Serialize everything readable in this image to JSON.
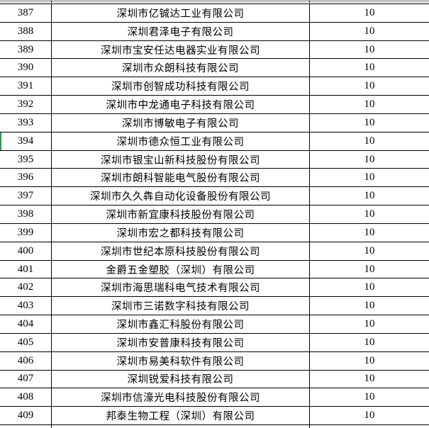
{
  "table": {
    "rows": [
      {
        "num": "387",
        "name": "深圳市亿铖达工业有限公司",
        "value": "10"
      },
      {
        "num": "388",
        "name": "深圳君泽电子有限公司",
        "value": "10"
      },
      {
        "num": "389",
        "name": "深圳市宝安任达电器实业有限公司",
        "value": "10"
      },
      {
        "num": "390",
        "name": "深圳市众朗科技有限公司",
        "value": "10"
      },
      {
        "num": "391",
        "name": "深圳市创智成功科技有限公司",
        "value": "10"
      },
      {
        "num": "392",
        "name": "深圳市中龙通电子科技有限公司",
        "value": "10"
      },
      {
        "num": "393",
        "name": "深圳市博敏电子有限公司",
        "value": "10"
      },
      {
        "num": "394",
        "name": "深圳市德众恒工业有限公司",
        "value": "10"
      },
      {
        "num": "395",
        "name": "深圳市银宝山新科技股份有限公司",
        "value": "10"
      },
      {
        "num": "396",
        "name": "深圳市朗科智能电气股份有限公司",
        "value": "10"
      },
      {
        "num": "397",
        "name": "深圳市久久犇自动化设备股份有限公司",
        "value": "10"
      },
      {
        "num": "398",
        "name": "深圳市新宜康科技股份有限公司",
        "value": "10"
      },
      {
        "num": "399",
        "name": "深圳市宏之都科技有限公司",
        "value": "10"
      },
      {
        "num": "400",
        "name": "深圳市世纪本原科技股份有限公司",
        "value": "10"
      },
      {
        "num": "401",
        "name": "金爵五金塑胶（深圳）有限公司",
        "value": "10"
      },
      {
        "num": "402",
        "name": "深圳市海思瑞科电气技术有限公司",
        "value": "10"
      },
      {
        "num": "403",
        "name": "深圳市三诺数字科技有限公司",
        "value": "10"
      },
      {
        "num": "404",
        "name": "深圳市鑫汇科股份有限公司",
        "value": "10"
      },
      {
        "num": "405",
        "name": "深圳市安普康科技有限公司",
        "value": "10"
      },
      {
        "num": "406",
        "name": "深圳市易美科软件有限公司",
        "value": "10"
      },
      {
        "num": "407",
        "name": "深圳锐爱科技有限公司",
        "value": "10"
      },
      {
        "num": "408",
        "name": "深圳市信濠光电科技股份有限公司",
        "value": "10"
      },
      {
        "num": "409",
        "name": "邦泰生物工程（深圳）有限公司",
        "value": "10"
      }
    ],
    "selection": {
      "row": "394",
      "marker_color": "#23A24B"
    }
  }
}
